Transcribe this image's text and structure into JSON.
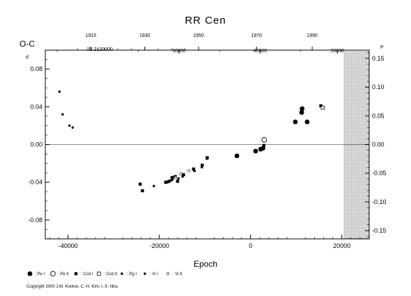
{
  "chart_data": {
    "type": "scatter",
    "title": "RR Cen",
    "xlabel": "Epoch",
    "ylabel": "O-C",
    "y_unit_left": "d",
    "y_unit_right": "P",
    "xlim": [
      -45000,
      26000
    ],
    "ylim": [
      -0.1,
      0.1
    ],
    "right_ylim": [
      -0.1645,
      0.1645
    ],
    "grid": false,
    "zero_line": true,
    "x_ticks": [
      -40000,
      -20000,
      0,
      20000
    ],
    "x_tick_labels": [
      "-40000",
      "-20000",
      "0",
      "20000"
    ],
    "y_ticks": [
      -0.08,
      -0.04,
      0.0,
      0.04,
      0.08
    ],
    "y_tick_labels": [
      "-0.08",
      "-0.04",
      "0.00",
      "0.04",
      "0.08"
    ],
    "right_ticks": [
      -0.15,
      -0.1,
      -0.05,
      0.0,
      0.05,
      0.1,
      0.15
    ],
    "right_tick_labels": [
      "-0.15",
      "-0.10",
      "-0.05",
      "0.00",
      "0.05",
      "0.10",
      "0.15"
    ],
    "top_year_axis": {
      "years": [
        "1910",
        "1930",
        "1950",
        "1970",
        "1990"
      ],
      "year_epochs": [
        -35000,
        -23200,
        -11400,
        1300,
        13500
      ]
    },
    "top_jd_axis": {
      "prefix": "JD 2420000",
      "labels": [
        "30000",
        "40000",
        "50000"
      ],
      "label_epochs": [
        -15700,
        2100,
        19000
      ]
    },
    "hatched_region": {
      "x_from": 20300,
      "x_to": 26000
    },
    "series": [
      {
        "name": "Pe I",
        "marker": "filled-circle-large",
        "x": [
          -3000,
          1100,
          2200,
          2700,
          9800,
          11200,
          11300,
          12400
        ],
        "y": [
          -0.012,
          -0.007,
          -0.005,
          -0.004,
          0.024,
          0.034,
          0.038,
          0.024
        ]
      },
      {
        "name": "Pe II",
        "marker": "open-circle-large",
        "x": [
          3000
        ],
        "y": [
          0.005
        ]
      },
      {
        "name": "Ccd I",
        "marker": "filled-square",
        "x": [
          -24200,
          -23700,
          -18600,
          -17900,
          -17200,
          -16500,
          -16000,
          -14700,
          -12500,
          -10600,
          -9500,
          2900,
          15400
        ],
        "y": [
          -0.042,
          -0.049,
          -0.04,
          -0.039,
          -0.035,
          -0.034,
          -0.039,
          -0.032,
          -0.026,
          -0.022,
          -0.014,
          -0.001,
          0.041
        ]
      },
      {
        "name": "Ccd II",
        "marker": "open-square",
        "x": [
          15800
        ],
        "y": [
          0.039
        ]
      },
      {
        "name": "Pg I",
        "marker": "small-square",
        "x": [
          -18200,
          -17400,
          -15800,
          -14900,
          -12300,
          -10700,
          -9600
        ],
        "y": [
          -0.04,
          -0.038,
          -0.036,
          -0.034,
          -0.028,
          -0.024,
          -0.015
        ]
      },
      {
        "name": "Vi I",
        "marker": "small-dot",
        "x": [
          -41900,
          -41200,
          -39700,
          -39000,
          -21200,
          -17100
        ],
        "y": [
          0.056,
          0.032,
          0.02,
          0.018,
          -0.044,
          -0.037
        ]
      },
      {
        "name": "Vi II",
        "marker": "small-open-circle",
        "x": [
          -16400,
          -15300,
          -13500
        ],
        "y": [
          -0.035,
          -0.031,
          -0.028
        ]
      }
    ],
    "legend": {
      "placement": "bottom-left",
      "entries": [
        {
          "marker": "filled-circle-large",
          "label": ": Pe I"
        },
        {
          "marker": "open-circle-large",
          "label": ": Pe II"
        },
        {
          "marker": "filled-square",
          "label": ": Ccd I"
        },
        {
          "marker": "open-square",
          "label": ": Ccd II"
        },
        {
          "marker": "small-square",
          "label": ": Pg I"
        },
        {
          "marker": "small-dot",
          "label": ": Vi I"
        },
        {
          "marker": "small-open-circle",
          "label": ": Vi II"
        }
      ]
    },
    "copyright": "Copyright 2000 J.M. Kreiner, C.-H. Kim, I.-S. Nha"
  }
}
